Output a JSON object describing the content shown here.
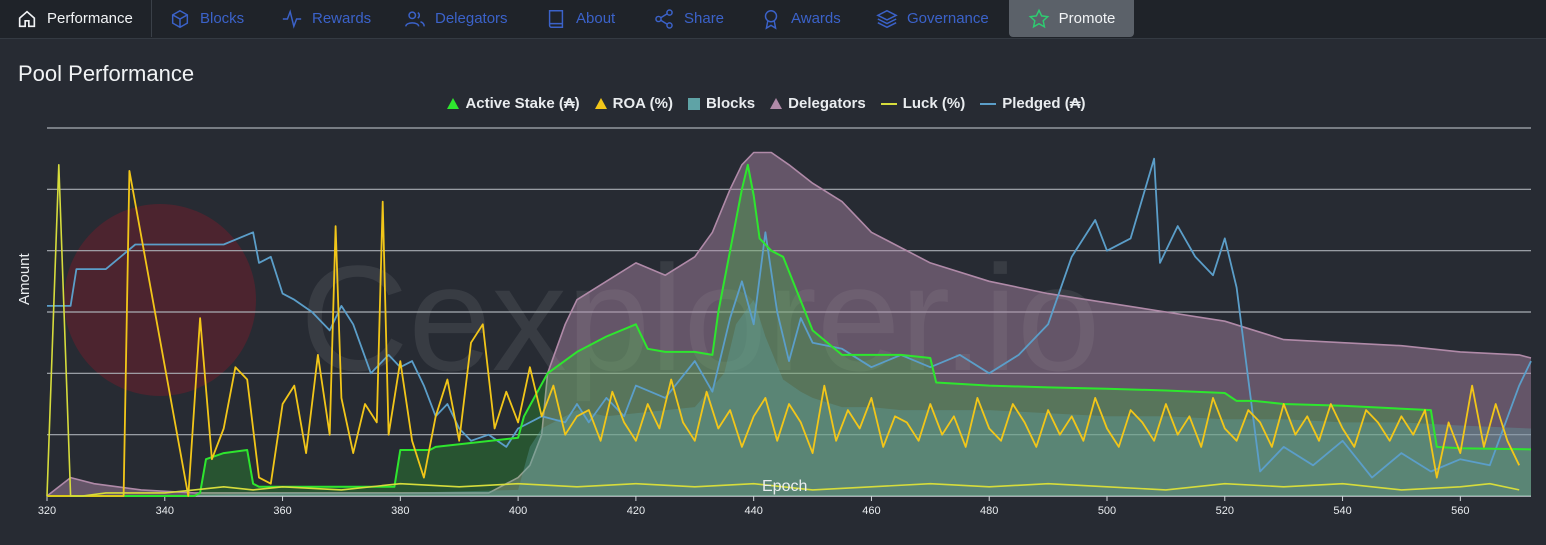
{
  "tabs": [
    {
      "label": "Performance",
      "icon": "home-icon"
    },
    {
      "label": "Blocks",
      "icon": "cube-icon"
    },
    {
      "label": "Rewards",
      "icon": "pulse-icon"
    },
    {
      "label": "Delegators",
      "icon": "users-icon"
    },
    {
      "label": "About",
      "icon": "book-icon"
    },
    {
      "label": "Share",
      "icon": "share-icon"
    },
    {
      "label": "Awards",
      "icon": "award-icon"
    },
    {
      "label": "Governance",
      "icon": "layers-icon"
    },
    {
      "label": "Promote",
      "icon": "star-icon"
    }
  ],
  "colors": {
    "active_stake": "#2ee62e",
    "roa": "#f2c619",
    "blocks": "#5fa3a6",
    "delegators": "#b08aa8",
    "luck": "#d6dc3c",
    "pledged": "#5b9ec9",
    "tab_link": "#3b62c9"
  },
  "watermark": "Cexplorer.io",
  "chart_data": {
    "type": "line",
    "title": "Pool Performance",
    "xlabel": "Epoch",
    "ylabel": "Amount",
    "xlim": [
      320,
      572
    ],
    "xticks": [
      320,
      340,
      360,
      380,
      400,
      420,
      440,
      460,
      480,
      500,
      520,
      540,
      560
    ],
    "ylim": [
      0,
      6
    ],
    "grid": true,
    "legend_position": "top",
    "legend": [
      "Active Stake (₳)",
      "ROA (%)",
      "Blocks",
      "Delegators",
      "Luck (%)",
      "Pledged (₳)"
    ],
    "series": [
      {
        "name": "Active Stake (₳)",
        "type": "area",
        "x": [
          320,
          345,
          346,
          347,
          350,
          354,
          355,
          356,
          358,
          379,
          380,
          385,
          386,
          400,
          401,
          405,
          410,
          415,
          420,
          422,
          425,
          430,
          433,
          434,
          436,
          438,
          439,
          440,
          441,
          443,
          445,
          450,
          455,
          460,
          465,
          470,
          471,
          480,
          490,
          500,
          510,
          520,
          522,
          525,
          530,
          540,
          555,
          556,
          560,
          572
        ],
        "y": [
          0,
          0,
          0.05,
          0.6,
          0.7,
          0.75,
          0.2,
          0.15,
          0.15,
          0.15,
          0.75,
          0.75,
          0.8,
          0.95,
          1.3,
          2.0,
          2.35,
          2.6,
          2.8,
          2.4,
          2.35,
          2.35,
          2.3,
          3.0,
          4.0,
          5.0,
          5.4,
          4.9,
          4.2,
          4.0,
          3.9,
          2.7,
          2.3,
          2.3,
          2.3,
          2.25,
          1.85,
          1.8,
          1.77,
          1.75,
          1.72,
          1.68,
          1.55,
          1.55,
          1.5,
          1.47,
          1.4,
          0.8,
          0.78,
          0.76
        ]
      },
      {
        "name": "ROA (%)",
        "type": "line",
        "x": [
          320,
          333,
          334,
          344,
          346,
          348,
          350,
          352,
          354,
          356,
          358,
          360,
          362,
          364,
          366,
          368,
          369,
          370,
          372,
          374,
          376,
          377,
          378,
          380,
          382,
          384,
          386,
          388,
          390,
          392,
          394,
          396,
          398,
          400,
          402,
          404,
          406,
          408,
          410,
          412,
          414,
          416,
          418,
          420,
          422,
          424,
          426,
          428,
          430,
          432,
          434,
          436,
          438,
          440,
          442,
          444,
          446,
          448,
          450,
          452,
          454,
          456,
          458,
          460,
          462,
          464,
          466,
          468,
          470,
          472,
          474,
          476,
          478,
          480,
          482,
          484,
          486,
          488,
          490,
          492,
          494,
          496,
          498,
          500,
          502,
          504,
          506,
          508,
          510,
          512,
          514,
          516,
          518,
          520,
          522,
          524,
          526,
          528,
          530,
          532,
          534,
          536,
          538,
          540,
          542,
          544,
          546,
          548,
          550,
          552,
          554,
          556,
          558,
          560,
          562,
          564,
          566,
          568,
          570
        ],
        "y": [
          0,
          0,
          5.3,
          0,
          2.9,
          0.6,
          1.1,
          2.1,
          1.9,
          0.3,
          0.2,
          1.5,
          1.8,
          0.7,
          2.3,
          1.0,
          4.4,
          1.6,
          0.7,
          1.5,
          1.2,
          4.8,
          1.0,
          2.2,
          0.9,
          0.3,
          1.3,
          1.9,
          0.9,
          2.5,
          2.8,
          1.1,
          1.7,
          1.2,
          2.1,
          1.3,
          1.8,
          1.0,
          1.3,
          1.4,
          0.9,
          1.7,
          1.2,
          0.9,
          1.5,
          1.1,
          1.9,
          1.2,
          0.9,
          1.7,
          1.1,
          1.4,
          0.8,
          1.3,
          1.6,
          0.9,
          1.5,
          1.2,
          0.7,
          1.8,
          0.9,
          1.4,
          1.1,
          1.6,
          0.8,
          1.3,
          1.2,
          0.9,
          1.5,
          1.0,
          1.3,
          0.8,
          1.6,
          1.1,
          0.9,
          1.5,
          1.2,
          0.8,
          1.4,
          1.0,
          1.3,
          0.9,
          1.6,
          1.1,
          0.8,
          1.4,
          1.2,
          0.9,
          1.5,
          1.0,
          1.3,
          0.8,
          1.6,
          1.1,
          0.9,
          1.4,
          1.2,
          0.8,
          1.5,
          1.0,
          1.3,
          0.9,
          1.5,
          1.1,
          0.8,
          1.4,
          1.2,
          0.9,
          1.3,
          1.0,
          1.4,
          0.3,
          1.2,
          0.7,
          1.8,
          0.8,
          1.5,
          0.9,
          0.5
        ]
      },
      {
        "name": "Blocks",
        "type": "area",
        "x": [
          320,
          345,
          360,
          380,
          400,
          402,
          404,
          406,
          408,
          410,
          415,
          420,
          425,
          430,
          435,
          437,
          440,
          442,
          445,
          448,
          450,
          455,
          460,
          465,
          470,
          480,
          490,
          500,
          510,
          520,
          530,
          540,
          550,
          560,
          572
        ],
        "y": [
          0,
          0.02,
          0.05,
          0.05,
          0.1,
          0.8,
          1.1,
          1.2,
          1.3,
          1.4,
          1.3,
          1.35,
          1.4,
          1.45,
          2.0,
          2.8,
          3.2,
          2.6,
          1.9,
          1.7,
          1.6,
          1.45,
          1.45,
          1.4,
          1.4,
          1.4,
          1.35,
          1.3,
          1.3,
          1.25,
          1.25,
          1.2,
          1.2,
          1.15,
          1.1
        ]
      },
      {
        "name": "Delegators",
        "type": "area",
        "x": [
          320,
          324,
          328,
          332,
          336,
          345,
          360,
          380,
          395,
          400,
          402,
          404,
          405,
          408,
          410,
          415,
          420,
          425,
          430,
          433,
          436,
          438,
          440,
          443,
          446,
          450,
          455,
          460,
          470,
          480,
          490,
          500,
          510,
          520,
          530,
          540,
          550,
          560,
          570,
          572
        ],
        "y": [
          0,
          0.3,
          0.2,
          0.15,
          0.1,
          0.05,
          0.05,
          0.05,
          0.05,
          0.3,
          0.5,
          1.0,
          2.0,
          2.8,
          3.2,
          3.5,
          3.8,
          3.6,
          3.9,
          4.3,
          5.0,
          5.4,
          5.6,
          5.6,
          5.4,
          5.1,
          4.8,
          4.3,
          3.8,
          3.5,
          3.3,
          3.15,
          3.0,
          2.85,
          2.55,
          2.5,
          2.45,
          2.35,
          2.3,
          2.25
        ]
      },
      {
        "name": "Luck (%)",
        "type": "line",
        "x": [
          320,
          322,
          324,
          326,
          330,
          340,
          345,
          350,
          355,
          360,
          370,
          380,
          390,
          400,
          410,
          420,
          430,
          440,
          450,
          460,
          470,
          480,
          490,
          500,
          510,
          520,
          530,
          540,
          550,
          560,
          565,
          570
        ],
        "y": [
          0,
          5.4,
          0,
          0,
          0.05,
          0.05,
          0.1,
          0.15,
          0.1,
          0.15,
          0.1,
          0.2,
          0.15,
          0.2,
          0.15,
          0.2,
          0.15,
          0.2,
          0.1,
          0.15,
          0.2,
          0.15,
          0.2,
          0.15,
          0.1,
          0.2,
          0.15,
          0.2,
          0.1,
          0.15,
          0.2,
          0.1
        ]
      },
      {
        "name": "Pledged (₳)",
        "type": "line",
        "x": [
          320,
          324,
          325,
          330,
          335,
          338,
          340,
          345,
          350,
          355,
          356,
          358,
          360,
          362,
          365,
          368,
          370,
          372,
          375,
          378,
          380,
          382,
          384,
          386,
          388,
          390,
          392,
          395,
          398,
          400,
          404,
          408,
          410,
          412,
          415,
          418,
          420,
          425,
          430,
          433,
          436,
          438,
          440,
          442,
          444,
          446,
          448,
          450,
          455,
          460,
          465,
          470,
          475,
          480,
          485,
          490,
          494,
          498,
          500,
          504,
          508,
          509,
          512,
          515,
          518,
          520,
          522,
          524,
          526,
          530,
          535,
          540,
          545,
          550,
          555,
          560,
          565,
          570,
          572
        ],
        "y": [
          3.1,
          3.1,
          3.7,
          3.7,
          4.1,
          4.1,
          4.1,
          4.1,
          4.1,
          4.3,
          3.8,
          3.9,
          3.3,
          3.2,
          3.0,
          2.7,
          3.1,
          2.8,
          2.0,
          2.3,
          2.1,
          2.2,
          1.8,
          1.3,
          1.5,
          1.1,
          0.9,
          1.0,
          0.8,
          1.1,
          1.3,
          1.2,
          1.5,
          1.2,
          1.6,
          1.3,
          1.8,
          1.6,
          2.2,
          1.7,
          2.9,
          3.5,
          2.8,
          4.3,
          3.0,
          2.2,
          2.9,
          2.5,
          2.4,
          2.1,
          2.3,
          2.1,
          2.3,
          2.0,
          2.3,
          2.8,
          3.9,
          4.5,
          4.0,
          4.2,
          5.5,
          3.8,
          4.4,
          3.9,
          3.6,
          4.2,
          3.4,
          1.9,
          0.4,
          0.8,
          0.5,
          0.9,
          0.3,
          0.7,
          0.4,
          0.6,
          0.5,
          1.8,
          2.2
        ]
      }
    ]
  }
}
